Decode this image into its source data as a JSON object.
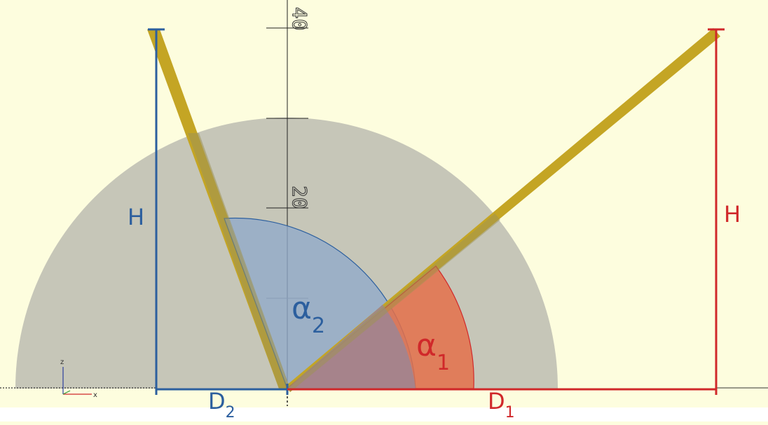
{
  "colors": {
    "background": "#fdfdde",
    "base_disc": "#c6c6b8",
    "rod": "#c4a524",
    "blue": "#2c5f9e",
    "blue_fill": "#8fa9cb",
    "red": "#d0282a",
    "red_fill": "#e4704a",
    "axis": "#222222"
  },
  "ruler": {
    "tick_labels": [
      "20",
      "40"
    ]
  },
  "labels": {
    "h_blue": "H",
    "h_red": "H",
    "alpha_2": {
      "base": "α",
      "sub": "2"
    },
    "alpha_1": {
      "base": "α",
      "sub": "1"
    },
    "d_2": {
      "base": "D",
      "sub": "2"
    },
    "d_1": {
      "base": "D",
      "sub": "1"
    }
  },
  "axes_gizmo": {
    "z_label": "z",
    "x_label": "x"
  }
}
